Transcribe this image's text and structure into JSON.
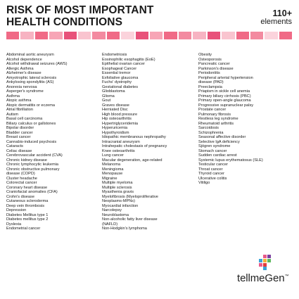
{
  "title": {
    "line1": "RISK OF MOST IMPORTANT",
    "line2": "HEALTH CONDITIONS"
  },
  "count": {
    "number": "110+",
    "label": "elements"
  },
  "color_strip": [
    "#f06a86",
    "#f7b3c2",
    "#f06a86",
    "#f7a5b6",
    "#e8527a",
    "#f9c4cf",
    "#f38aa0",
    "#f06a86",
    "#fbd3dc",
    "#e8527a",
    "#f7a5b6",
    "#f06a86",
    "#f38aa0",
    "#f7b3c2",
    "#e8527a",
    "#f9c4cf",
    "#f06a86",
    "#f38aa0",
    "#fbd3dc",
    "#f06a86"
  ],
  "logo": {
    "text": "tellmeGen",
    "tm": "™",
    "mark_colors": [
      "#e85a8a",
      "#7b3fa0",
      "#3ba3d8",
      "#f2b33a",
      "#5cb85c",
      "#e23c3c"
    ]
  },
  "columns": [
    [
      "Abdominal aortic aneurysm",
      "Alcohol dependence",
      "Alcohol withdrawal seizures (AWS)",
      "Allergic Asthma",
      "Alzheimer's disease",
      "Amyotrophic lateral sclerosis",
      "Ankylosing spondylitis (AS)",
      "Anorexia nervosa",
      "Asperger's syndrome",
      "Asthma",
      "Atopic asthma",
      "Atopic dermatitis or eczema",
      "Atrial fibrillation",
      "Autism",
      "Basal cell carcinoma",
      "Biliary calculus or gallstones",
      "Bipolar disorder",
      "Bladder cancer",
      "Breast cancer",
      "Cannabis-induced psychosis",
      "Cataracts",
      "Celiac disease",
      "Cerebrovascular accident (CVA)",
      "Chronic kidney disease",
      "Chronic lymphocytic leukemia",
      "Chronic obstructive pulmonary",
      "disease (COPD)",
      "Cluster headache",
      "Colorectal cancer",
      "Coronary heart disease",
      "Craniofacial anomalies (CFA)",
      "Crohn's disease",
      "Cutaneous scleroderma",
      "Deep vein thrombosis",
      "Depression",
      "Diabetes Mellitus type 1",
      "Diabetes mellitus type 2",
      "Dyslexia",
      "Endometrial cancer"
    ],
    [
      "Endometriosis",
      "Eosinophilic esophagitis (EoE)",
      "Epithelial ovarian cancer",
      "Esophageal Cancer",
      "Essential tremor",
      "Exfoliative glaucoma",
      "Fuchs' dystrophy",
      "Gestational diabetes",
      "Glioblastoma",
      "Glioma",
      "Gout",
      "Graves disease",
      "Herniated Disc",
      "High blood pressure",
      "Hip osteoarthritis",
      "Hypertriglyceridemia",
      "Hyperuricemia",
      "Hypothyroidism",
      "Idiopathic membranous nephropathy",
      "Intracranial aneurysm",
      "Intrahepatic cholestasis of pregnancy",
      "Knee osteoarthritis",
      "Lung cancer",
      "Macular degeneration, age-related",
      "Melanoma",
      "Meningioma",
      "Menopause",
      "Migraine",
      "Multiple myeloma",
      "Multiple sclerosis",
      "Myasthenia gravis",
      "Myelofibrosis (Myeloproliferative",
      "Neoplasms-MPNs)",
      "Myocardial infarction",
      "Narcolepsy",
      "Neuroblastoma",
      "Non-alcoholic fatty liver disease",
      "(NAFLD)",
      "Non-Hodgkin's lymphoma"
    ],
    [
      "Obesity",
      "Osteoporosis",
      "Pancreatic cancer",
      "Parkinson's disease",
      "Periodontitis",
      "Peripheral arterial hypertension",
      "disease (PAD)",
      "Preeclampsia",
      "Priapism in sickle cell anemia",
      "Primary biliary cirrhosis (PBC)",
      "Primary open-angle glaucoma",
      "Progressive supranuclear palsy",
      "Prostate cancer",
      "Pulmonary fibrosis",
      "Restless leg syndrome",
      "Rheumatoid arthritis",
      "Sarcoidosis",
      "Schizophrenia",
      "Seasonal affective disorder",
      "Selective IgA deficiency",
      "Sjögren syndrome",
      "Stomach cancer",
      "Sudden cardiac arrest",
      "Systemic lupus erythematosus (SLE)",
      "Testicular cancer",
      "Throat cancer",
      "Thyroid cancer",
      "Ulcerative colitis",
      "Vitiligo"
    ]
  ]
}
